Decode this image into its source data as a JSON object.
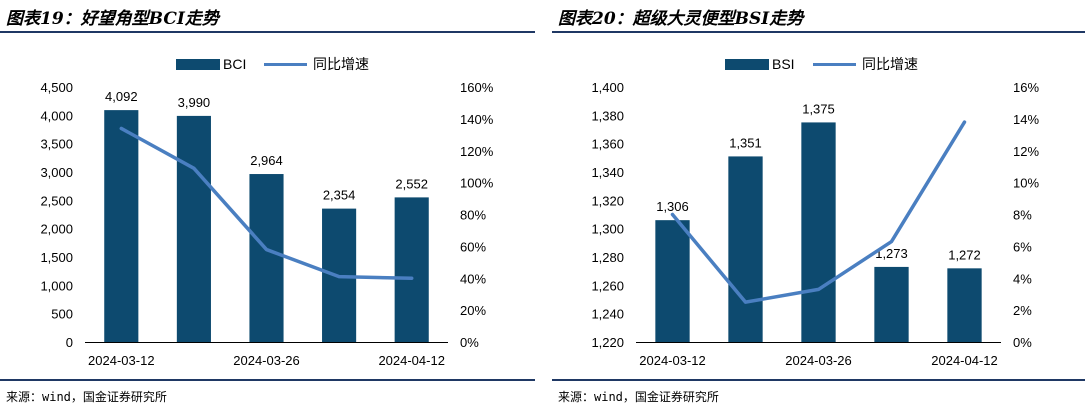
{
  "left": {
    "title": "图表19：好望角型BCI走势",
    "source": "来源：wind，国金证券研究所",
    "chart_data": {
      "type": "bar",
      "categories": [
        "2024-03-12",
        "",
        "2024-03-26",
        "",
        "2024-04-12"
      ],
      "tick_labels": [
        "2024-03-12",
        "2024-03-26",
        "2024-04-12"
      ],
      "series": [
        {
          "name": "BCI",
          "type": "bar",
          "axis": "left",
          "values": [
            4092,
            3990,
            2964,
            2354,
            2552
          ],
          "labels": [
            "4,092",
            "3,990",
            "2,964",
            "2,354",
            "2,552"
          ]
        },
        {
          "name": "同比增速",
          "type": "line",
          "axis": "right",
          "values": [
            1.34,
            1.09,
            0.58,
            0.41,
            0.4
          ]
        }
      ],
      "ylim": [
        0,
        4500
      ],
      "yticks": [
        "0",
        "500",
        "1,000",
        "1,500",
        "2,000",
        "2,500",
        "3,000",
        "3,500",
        "4,000",
        "4,500"
      ],
      "y2lim": [
        0,
        1.6
      ],
      "y2ticks": [
        "0%",
        "20%",
        "40%",
        "60%",
        "80%",
        "100%",
        "120%",
        "140%",
        "160%"
      ],
      "legend_position": "top-center",
      "grid": false
    }
  },
  "right": {
    "title": "图表20：超级大灵便型BSI走势",
    "source": "来源：wind，国金证券研究所",
    "chart_data": {
      "type": "bar",
      "categories": [
        "2024-03-12",
        "",
        "2024-03-26",
        "",
        "2024-04-12"
      ],
      "tick_labels": [
        "2024-03-12",
        "2024-03-26",
        "2024-04-12"
      ],
      "series": [
        {
          "name": "BSI",
          "type": "bar",
          "axis": "left",
          "values": [
            1306,
            1351,
            1375,
            1273,
            1272
          ],
          "labels": [
            "1,306",
            "1,351",
            "1,375",
            "1,273",
            "1,272"
          ]
        },
        {
          "name": "同比增速",
          "type": "line",
          "axis": "right",
          "values": [
            0.08,
            0.025,
            0.033,
            0.063,
            0.138
          ]
        }
      ],
      "ylim": [
        1220,
        1400
      ],
      "yticks": [
        "1,220",
        "1,240",
        "1,260",
        "1,280",
        "1,300",
        "1,320",
        "1,340",
        "1,360",
        "1,380",
        "1,400"
      ],
      "y2lim": [
        0,
        0.16
      ],
      "y2ticks": [
        "0%",
        "2%",
        "4%",
        "6%",
        "8%",
        "10%",
        "12%",
        "14%",
        "16%"
      ],
      "legend_position": "top-center",
      "grid": false
    }
  },
  "colors": {
    "bar": "#0d4a6f",
    "line": "#4a7fc1",
    "rule": "#1f3864",
    "text": "#000000"
  }
}
